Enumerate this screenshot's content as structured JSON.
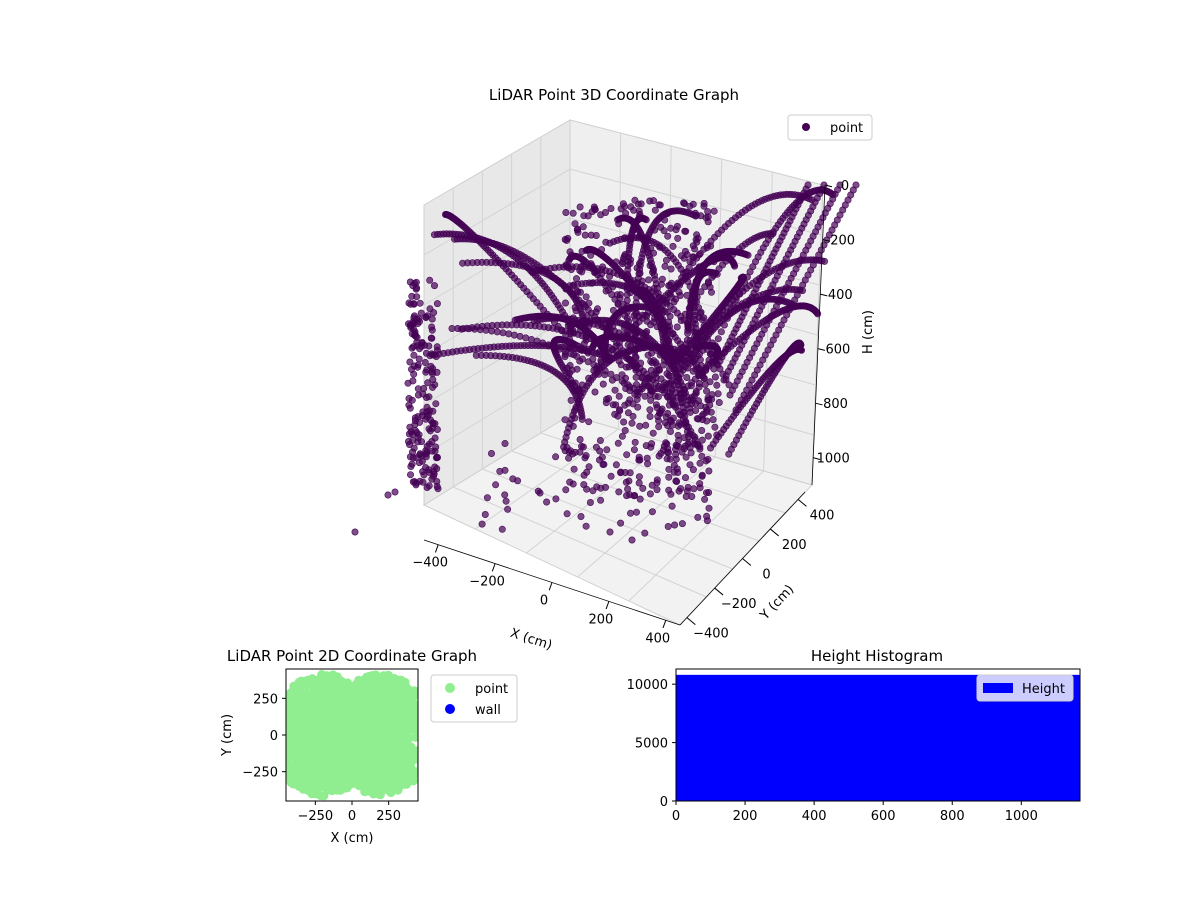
{
  "chart_data": [
    {
      "type": "scatter3d",
      "title": "LiDAR Point 3D Coordinate Graph",
      "xlabel": "X (cm)",
      "ylabel": "Y (cm)",
      "zlabel": "H (cm)",
      "x_ticks": [
        "−400",
        "−200",
        "0",
        "200",
        "400"
      ],
      "y_ticks": [
        "−400",
        "−200",
        "0",
        "200",
        "400"
      ],
      "z_ticks": [
        "0",
        "200",
        "400",
        "600",
        "800",
        "1000"
      ],
      "xlim": [
        -450,
        450
      ],
      "ylim": [
        -450,
        450
      ],
      "zlim": [
        0,
        1100
      ],
      "z_inverted": true,
      "grid": true,
      "legend": {
        "placement": "top-right",
        "entries": [
          {
            "label": "point",
            "color": "#440154"
          }
        ]
      },
      "point_color": "#440154"
    },
    {
      "type": "scatter",
      "title": "LiDAR Point 2D Coordinate Graph",
      "xlabel": "X (cm)",
      "ylabel": "Y (cm)",
      "x_ticks": [
        "−250",
        "0",
        "250"
      ],
      "y_ticks": [
        "250",
        "0",
        "−250"
      ],
      "xlim": [
        -450,
        450
      ],
      "ylim": [
        -450,
        450
      ],
      "legend": {
        "placement": "outside-right",
        "entries": [
          {
            "label": "point",
            "color": "#90ee90"
          },
          {
            "label": "wall",
            "color": "#0000ff"
          }
        ]
      }
    },
    {
      "type": "bar",
      "title": "Height Histogram",
      "x_ticks": [
        "0",
        "200",
        "400",
        "600",
        "800",
        "1000"
      ],
      "y_ticks": [
        "0",
        "5000",
        "10000"
      ],
      "xlim": [
        0,
        1170
      ],
      "ylim": [
        0,
        11300
      ],
      "bins": [
        {
          "x0": 0,
          "x1": 1170,
          "value": 10800
        }
      ],
      "bar_color": "#0000ff",
      "legend": {
        "placement": "top-right",
        "entries": [
          {
            "label": "Height",
            "color": "#0000ff"
          }
        ]
      }
    }
  ]
}
